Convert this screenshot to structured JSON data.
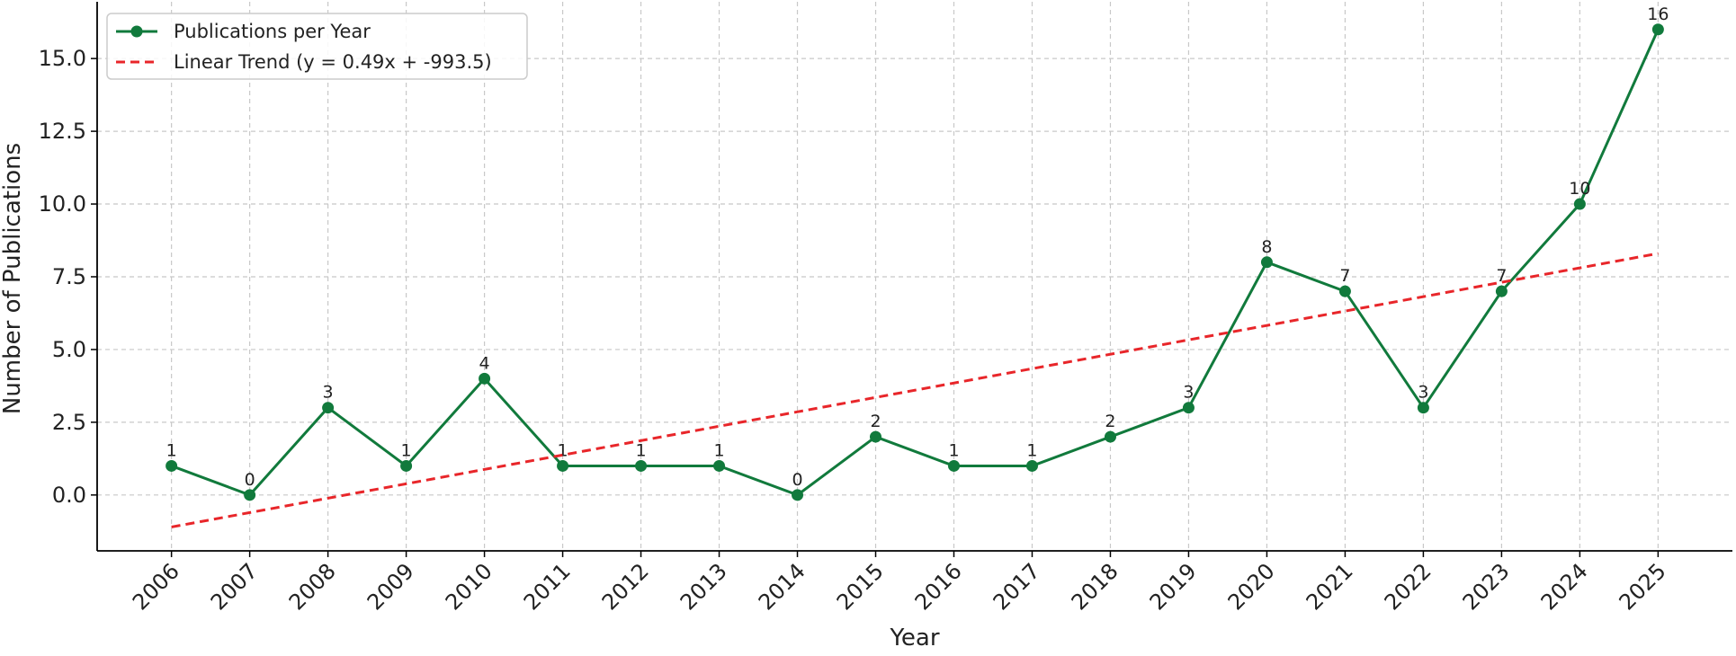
{
  "chart_data": {
    "type": "line",
    "x_label": "Year",
    "y_label": "Number of Publications",
    "x": [
      2006,
      2007,
      2008,
      2009,
      2010,
      2011,
      2012,
      2013,
      2014,
      2015,
      2016,
      2017,
      2018,
      2019,
      2020,
      2021,
      2022,
      2023,
      2024,
      2025
    ],
    "series": [
      {
        "name": "Publications per Year",
        "color": "#117a3c",
        "values": [
          1,
          0,
          3,
          1,
          4,
          1,
          1,
          1,
          0,
          2,
          1,
          1,
          2,
          3,
          8,
          7,
          3,
          7,
          10,
          16
        ],
        "markers": true,
        "data_labels": true
      },
      {
        "name": "Linear Trend (y = 0.49x + -993.5)",
        "color": "#e8262a",
        "x": [
          2006,
          2025
        ],
        "values": [
          -1.1,
          8.3
        ],
        "dashed": true
      }
    ],
    "xlim": [
      2005.05,
      2025.95
    ],
    "ylim": [
      -1.92,
      16.95
    ],
    "xticks": [
      2006,
      2007,
      2008,
      2009,
      2010,
      2011,
      2012,
      2013,
      2014,
      2015,
      2016,
      2017,
      2018,
      2019,
      2020,
      2021,
      2022,
      2023,
      2024,
      2025
    ],
    "yticks": [
      {
        "value": 0,
        "label": "0.0"
      },
      {
        "value": 2.5,
        "label": "2.5"
      },
      {
        "value": 5,
        "label": "5.0"
      },
      {
        "value": 7.5,
        "label": "7.5"
      },
      {
        "value": 10,
        "label": "10.0"
      },
      {
        "value": 12.5,
        "label": "12.5"
      },
      {
        "value": 15,
        "label": "15.0"
      }
    ],
    "grid": true,
    "legend": "upper-left"
  }
}
